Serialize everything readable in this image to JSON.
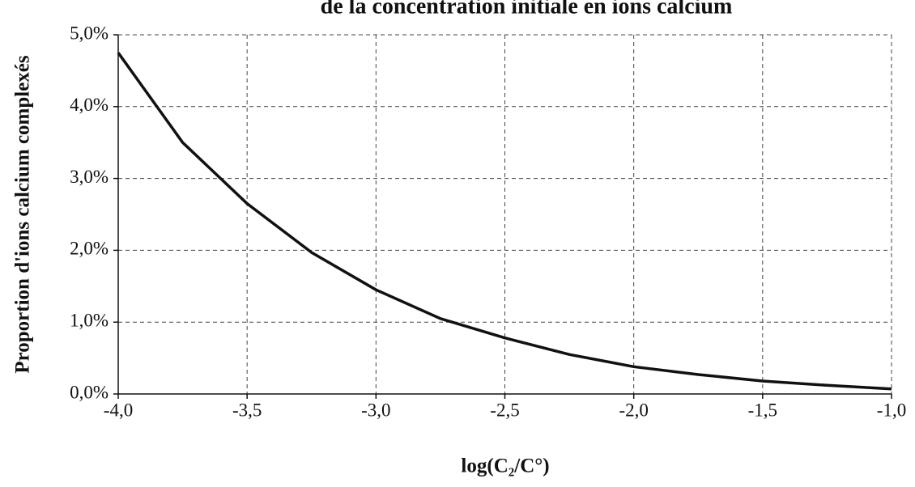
{
  "chart_data": {
    "type": "line",
    "title": "de la concentration initiale  en ions calcium",
    "xlabel": "log(C₂/C°)",
    "ylabel": "Proportion  d'ions  calcium  complexés",
    "x": [
      -4.0,
      -3.75,
      -3.5,
      -3.25,
      -3.0,
      -2.75,
      -2.5,
      -2.25,
      -2.0,
      -1.75,
      -1.5,
      -1.25,
      -1.0
    ],
    "values": [
      4.75,
      3.5,
      2.65,
      1.97,
      1.45,
      1.05,
      0.78,
      0.55,
      0.38,
      0.27,
      0.18,
      0.12,
      0.07
    ],
    "color": "#111111",
    "xlim": [
      -4.0,
      -1.0
    ],
    "ylim": [
      0,
      5
    ],
    "xticks": [
      {
        "value": -4.0,
        "label": "-4,0"
      },
      {
        "value": -3.5,
        "label": "-3,5"
      },
      {
        "value": -3.0,
        "label": "-3,0"
      },
      {
        "value": -2.5,
        "label": "-2,5"
      },
      {
        "value": -2.0,
        "label": "-2,0"
      },
      {
        "value": -1.5,
        "label": "-1,5"
      },
      {
        "value": -1.0,
        "label": "-1,0"
      }
    ],
    "yticks": [
      {
        "value": 0,
        "label": "0,0%"
      },
      {
        "value": 1,
        "label": "1,0%"
      },
      {
        "value": 2,
        "label": "2,0%"
      },
      {
        "value": 3,
        "label": "3,0%"
      },
      {
        "value": 4,
        "label": "4,0%"
      },
      {
        "value": 5,
        "label": "5,0%"
      }
    ],
    "grid": true
  }
}
